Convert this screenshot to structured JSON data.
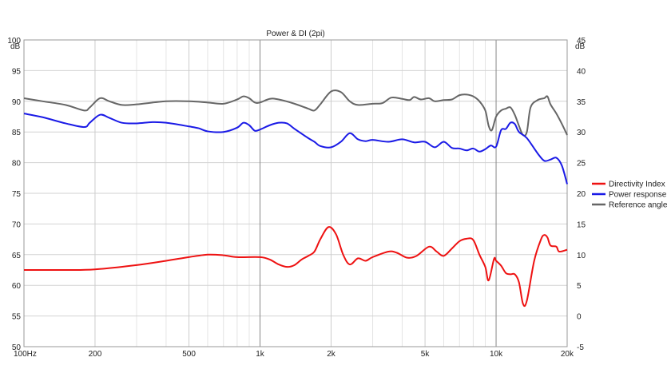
{
  "chart_data": {
    "type": "line",
    "title": "Power & DI (2pi)",
    "xscale": "log",
    "xlim": [
      100,
      20000
    ],
    "ylim": [
      50,
      100
    ],
    "y2lim": [
      -5,
      45
    ],
    "y_unit": "dB",
    "y2_unit": "dB",
    "x_ticks": [
      {
        "v": 100,
        "label": "100Hz"
      },
      {
        "v": 200,
        "label": "200"
      },
      {
        "v": 500,
        "label": "500"
      },
      {
        "v": 1000,
        "label": "1k"
      },
      {
        "v": 2000,
        "label": "2k"
      },
      {
        "v": 5000,
        "label": "5k"
      },
      {
        "v": 10000,
        "label": "10k"
      },
      {
        "v": 20000,
        "label": "20k"
      }
    ],
    "y_ticks": [
      100,
      95,
      90,
      85,
      80,
      75,
      70,
      65,
      60,
      55,
      50
    ],
    "y2_ticks": [
      45,
      40,
      35,
      30,
      25,
      20,
      15,
      10,
      5,
      0,
      -5
    ],
    "grid": true,
    "legend_position": "right",
    "series": [
      {
        "name": "Directivity Index",
        "color": "#ee1111",
        "axis": "right",
        "points": [
          [
            100,
            7.5
          ],
          [
            150,
            7.5
          ],
          [
            200,
            7.6
          ],
          [
            300,
            8.3
          ],
          [
            400,
            9.0
          ],
          [
            500,
            9.6
          ],
          [
            600,
            10.0
          ],
          [
            700,
            9.9
          ],
          [
            800,
            9.6
          ],
          [
            1000,
            9.6
          ],
          [
            1100,
            9.2
          ],
          [
            1200,
            8.4
          ],
          [
            1300,
            8.0
          ],
          [
            1400,
            8.3
          ],
          [
            1500,
            9.2
          ],
          [
            1600,
            9.8
          ],
          [
            1700,
            10.5
          ],
          [
            1800,
            12.5
          ],
          [
            1950,
            14.5
          ],
          [
            2100,
            13.3
          ],
          [
            2250,
            10.0
          ],
          [
            2400,
            8.4
          ],
          [
            2600,
            9.4
          ],
          [
            2800,
            9.0
          ],
          [
            3000,
            9.6
          ],
          [
            3500,
            10.5
          ],
          [
            3800,
            10.3
          ],
          [
            4200,
            9.5
          ],
          [
            4600,
            9.8
          ],
          [
            5200,
            11.3
          ],
          [
            5600,
            10.5
          ],
          [
            6000,
            9.8
          ],
          [
            6500,
            11.0
          ],
          [
            7000,
            12.2
          ],
          [
            7500,
            12.6
          ],
          [
            8000,
            12.4
          ],
          [
            8500,
            10.0
          ],
          [
            9000,
            8.0
          ],
          [
            9300,
            5.8
          ],
          [
            9800,
            9.3
          ],
          [
            10000,
            9.0
          ],
          [
            10500,
            8.2
          ],
          [
            11000,
            7.0
          ],
          [
            11500,
            6.8
          ],
          [
            12000,
            6.8
          ],
          [
            12500,
            5.5
          ],
          [
            13000,
            2.0
          ],
          [
            13500,
            2.5
          ],
          [
            14500,
            9.0
          ],
          [
            15500,
            12.5
          ],
          [
            16000,
            13.2
          ],
          [
            16500,
            12.8
          ],
          [
            17000,
            11.5
          ],
          [
            18000,
            11.3
          ],
          [
            18500,
            10.5
          ],
          [
            20000,
            10.8
          ]
        ]
      },
      {
        "name": "Power response",
        "color": "#1a1ae6",
        "axis": "left",
        "points": [
          [
            100,
            88.0
          ],
          [
            120,
            87.4
          ],
          [
            150,
            86.4
          ],
          [
            180,
            85.8
          ],
          [
            190,
            86.5
          ],
          [
            210,
            87.8
          ],
          [
            230,
            87.3
          ],
          [
            260,
            86.5
          ],
          [
            300,
            86.4
          ],
          [
            350,
            86.6
          ],
          [
            400,
            86.5
          ],
          [
            500,
            85.9
          ],
          [
            550,
            85.6
          ],
          [
            600,
            85.1
          ],
          [
            700,
            85.0
          ],
          [
            800,
            85.7
          ],
          [
            850,
            86.5
          ],
          [
            900,
            86.1
          ],
          [
            950,
            85.2
          ],
          [
            1000,
            85.4
          ],
          [
            1100,
            86.1
          ],
          [
            1200,
            86.5
          ],
          [
            1300,
            86.4
          ],
          [
            1400,
            85.5
          ],
          [
            1600,
            84.0
          ],
          [
            1700,
            83.4
          ],
          [
            1800,
            82.7
          ],
          [
            2000,
            82.5
          ],
          [
            2200,
            83.4
          ],
          [
            2400,
            84.8
          ],
          [
            2600,
            83.8
          ],
          [
            2800,
            83.5
          ],
          [
            3000,
            83.7
          ],
          [
            3500,
            83.4
          ],
          [
            4000,
            83.8
          ],
          [
            4500,
            83.3
          ],
          [
            5000,
            83.4
          ],
          [
            5500,
            82.5
          ],
          [
            6000,
            83.4
          ],
          [
            6500,
            82.4
          ],
          [
            7000,
            82.3
          ],
          [
            7500,
            82.0
          ],
          [
            8000,
            82.3
          ],
          [
            8500,
            81.8
          ],
          [
            9000,
            82.2
          ],
          [
            9500,
            82.8
          ],
          [
            10000,
            82.6
          ],
          [
            10500,
            85.3
          ],
          [
            11000,
            85.5
          ],
          [
            11500,
            86.5
          ],
          [
            12000,
            86.3
          ],
          [
            12500,
            85.0
          ],
          [
            13500,
            84.0
          ],
          [
            15000,
            81.5
          ],
          [
            16000,
            80.3
          ],
          [
            17000,
            80.5
          ],
          [
            18000,
            80.8
          ],
          [
            19000,
            79.5
          ],
          [
            20000,
            76.5
          ]
        ]
      },
      {
        "name": "Reference angle",
        "color": "#666666",
        "axis": "left",
        "points": [
          [
            100,
            90.5
          ],
          [
            120,
            90.0
          ],
          [
            150,
            89.4
          ],
          [
            180,
            88.5
          ],
          [
            190,
            89.0
          ],
          [
            210,
            90.5
          ],
          [
            230,
            90.0
          ],
          [
            260,
            89.4
          ],
          [
            300,
            89.5
          ],
          [
            400,
            90.0
          ],
          [
            500,
            90.0
          ],
          [
            600,
            89.8
          ],
          [
            700,
            89.6
          ],
          [
            800,
            90.3
          ],
          [
            850,
            90.8
          ],
          [
            900,
            90.5
          ],
          [
            950,
            89.8
          ],
          [
            1000,
            89.8
          ],
          [
            1100,
            90.4
          ],
          [
            1200,
            90.3
          ],
          [
            1400,
            89.6
          ],
          [
            1600,
            88.8
          ],
          [
            1700,
            88.5
          ],
          [
            1800,
            89.5
          ],
          [
            2000,
            91.6
          ],
          [
            2200,
            91.5
          ],
          [
            2400,
            90.0
          ],
          [
            2600,
            89.4
          ],
          [
            3000,
            89.6
          ],
          [
            3300,
            89.7
          ],
          [
            3600,
            90.6
          ],
          [
            4000,
            90.4
          ],
          [
            4300,
            90.2
          ],
          [
            4500,
            90.7
          ],
          [
            4800,
            90.3
          ],
          [
            5200,
            90.5
          ],
          [
            5500,
            90.0
          ],
          [
            6000,
            90.2
          ],
          [
            6500,
            90.3
          ],
          [
            7000,
            91.0
          ],
          [
            7500,
            91.1
          ],
          [
            8000,
            90.8
          ],
          [
            8500,
            90.0
          ],
          [
            9000,
            88.5
          ],
          [
            9300,
            86.0
          ],
          [
            9600,
            85.3
          ],
          [
            10000,
            87.5
          ],
          [
            10500,
            88.5
          ],
          [
            11000,
            88.8
          ],
          [
            11500,
            89.0
          ],
          [
            12000,
            87.8
          ],
          [
            12500,
            86.0
          ],
          [
            13000,
            84.5
          ],
          [
            13500,
            85.0
          ],
          [
            14000,
            89.0
          ],
          [
            15000,
            90.2
          ],
          [
            16000,
            90.5
          ],
          [
            16500,
            90.8
          ],
          [
            17000,
            89.5
          ],
          [
            18000,
            88.0
          ],
          [
            19000,
            86.3
          ],
          [
            20000,
            84.5
          ]
        ]
      }
    ]
  }
}
